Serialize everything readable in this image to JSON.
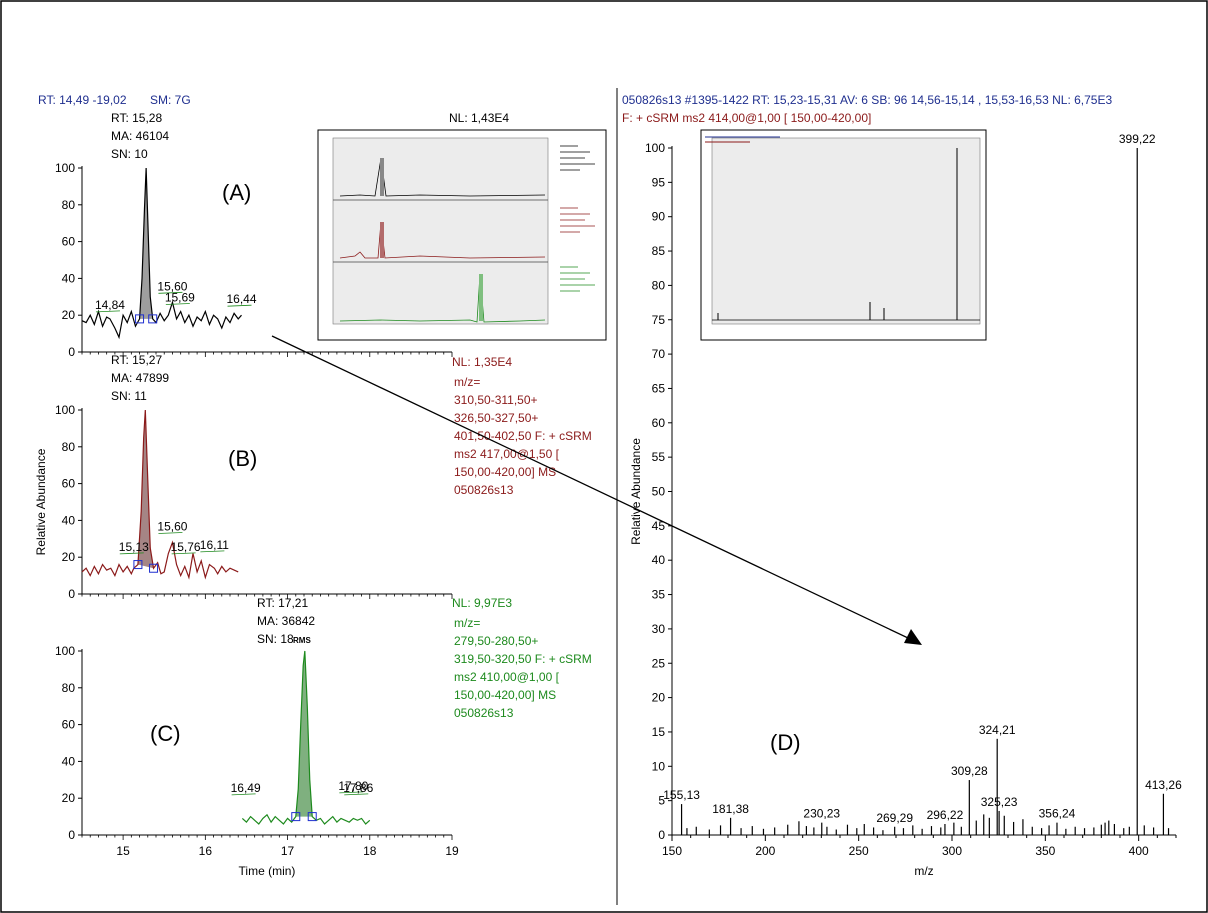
{
  "chrome": {
    "left_header": {
      "label1": "RT: 14,49 -19,02",
      "label2": "SM: 7G"
    },
    "right_header": {
      "line1": "050826s13 #1395-1422  RT: 15,23-15,31  AV: 6  SB: 96  14,56-15,14 , 15,53-16,53  NL: 6,75E3",
      "line2": "F: + cSRM ms2 414,00@1,00 [ 150,00-420,00]"
    },
    "panelA": {
      "info": [
        "RT: 15,28",
        "MA: 46104",
        "SN: 10"
      ],
      "nl": "NL: 1,43E4",
      "letter": "(A)"
    },
    "panelB": {
      "info": [
        "RT: 15,27",
        "MA: 47899",
        "SN: 11"
      ],
      "nl": "NL: 1,35E4",
      "filter": [
        "m/z=",
        "310,50-311,50+",
        "326,50-327,50+",
        "401,50-402,50 F: + cSRM",
        "ms2 417,00@1,50 [",
        "150,00-420,00]  MS",
        "050826s13"
      ],
      "letter": "(B)"
    },
    "panelC": {
      "info": [
        "RT: 17,21",
        "MA: 36842",
        "SN: 18"
      ],
      "rms": "RMS",
      "nl": "NL: 9,97E3",
      "filter": [
        "m/z=",
        "279,50-280,50+",
        "319,50-320,50 F: + cSRM",
        "ms2 410,00@1,00 [",
        "150,00-420,00]  MS",
        "050826s13"
      ],
      "letter": "(C)"
    },
    "panelD": {
      "letter": "(D)"
    }
  },
  "chart_data": [
    {
      "type": "line",
      "panel": "A",
      "color": "#000000",
      "xlim": [
        14.5,
        19
      ],
      "ylim": [
        0,
        100
      ],
      "yticks": [
        0,
        20,
        40,
        60,
        80,
        100
      ],
      "peak_labels": [
        {
          "x": 14.84,
          "label": "14,84"
        },
        {
          "x": 15.6,
          "label": "15,60"
        },
        {
          "x": 15.69,
          "label": "15,69"
        },
        {
          "x": 16.44,
          "label": "16,44"
        }
      ],
      "x": [
        14.5,
        14.55,
        14.6,
        14.65,
        14.7,
        14.75,
        14.8,
        14.84,
        14.9,
        14.95,
        15.0,
        15.05,
        15.1,
        15.15,
        15.2,
        15.23,
        15.26,
        15.28,
        15.3,
        15.33,
        15.36,
        15.4,
        15.45,
        15.5,
        15.55,
        15.6,
        15.65,
        15.7,
        15.75,
        15.8,
        15.85,
        15.9,
        15.95,
        16.0,
        16.05,
        16.1,
        16.15,
        16.2,
        16.25,
        16.3,
        16.35,
        16.4,
        16.44
      ],
      "y": [
        17,
        16,
        20,
        15,
        22,
        14,
        19,
        18,
        13,
        8,
        20,
        16,
        22,
        14,
        18,
        40,
        78,
        100,
        72,
        30,
        18,
        16,
        21,
        17,
        20,
        27,
        18,
        22,
        16,
        20,
        14,
        19,
        17,
        22,
        15,
        20,
        18,
        13,
        19,
        16,
        21,
        18,
        20
      ]
    },
    {
      "type": "line",
      "panel": "B",
      "color": "#8b1a1a",
      "xlim": [
        14.5,
        19
      ],
      "ylim": [
        0,
        100
      ],
      "yticks": [
        0,
        20,
        40,
        60,
        80,
        100
      ],
      "ylabel": "Relative Abundance",
      "peak_labels": [
        {
          "x": 15.13,
          "label": "15,13"
        },
        {
          "x": 15.6,
          "label": "15,60"
        },
        {
          "x": 15.76,
          "label": "15,76"
        },
        {
          "x": 16.11,
          "label": "16,11"
        }
      ],
      "x": [
        14.5,
        14.55,
        14.6,
        14.65,
        14.7,
        14.75,
        14.8,
        14.85,
        14.9,
        14.95,
        15.0,
        15.05,
        15.1,
        15.13,
        15.18,
        15.22,
        15.25,
        15.27,
        15.3,
        15.33,
        15.37,
        15.42,
        15.46,
        15.5,
        15.55,
        15.6,
        15.65,
        15.7,
        15.75,
        15.8,
        15.85,
        15.9,
        15.95,
        16.0,
        16.05,
        16.11,
        16.15,
        16.2,
        16.25,
        16.3,
        16.35,
        16.4
      ],
      "y": [
        12,
        14,
        10,
        15,
        11,
        16,
        13,
        14,
        10,
        16,
        12,
        15,
        11,
        14,
        16,
        45,
        85,
        100,
        62,
        25,
        14,
        17,
        11,
        12,
        22,
        28,
        16,
        10,
        15,
        9,
        22,
        12,
        18,
        9,
        16,
        14,
        11,
        15,
        12,
        14,
        13,
        12
      ]
    },
    {
      "type": "line",
      "panel": "C",
      "color": "#1d8a1d",
      "xlim": [
        14.5,
        19
      ],
      "ylim": [
        0,
        100
      ],
      "xticks": [
        15,
        16,
        17,
        18,
        19
      ],
      "yticks": [
        0,
        20,
        40,
        60,
        80,
        100
      ],
      "xlabel": "Time (min)",
      "peak_labels": [
        {
          "x": 16.49,
          "label": "16,49"
        },
        {
          "x": 17.8,
          "label": "17,80"
        },
        {
          "x": 17.86,
          "label": "17,86"
        }
      ],
      "x": [
        16.45,
        16.5,
        16.55,
        16.6,
        16.65,
        16.7,
        16.75,
        16.8,
        16.85,
        16.9,
        16.95,
        17.0,
        17.05,
        17.1,
        17.13,
        17.16,
        17.19,
        17.21,
        17.24,
        17.27,
        17.3,
        17.35,
        17.4,
        17.45,
        17.5,
        17.55,
        17.6,
        17.65,
        17.7,
        17.75,
        17.8,
        17.85,
        17.9,
        17.95,
        18.0
      ],
      "y": [
        9,
        7,
        10,
        8,
        6,
        9,
        11,
        7,
        10,
        8,
        6,
        9,
        7,
        10,
        25,
        60,
        92,
        100,
        70,
        30,
        10,
        8,
        9,
        6,
        8,
        10,
        7,
        9,
        8,
        7,
        9,
        8,
        9,
        6,
        8
      ]
    },
    {
      "type": "bar",
      "panel": "D",
      "xlim": [
        150,
        420
      ],
      "ylim": [
        0,
        100
      ],
      "xticks": [
        150,
        200,
        250,
        300,
        350,
        400
      ],
      "yticks": [
        0,
        5,
        10,
        15,
        20,
        25,
        30,
        35,
        40,
        45,
        50,
        55,
        60,
        65,
        70,
        75,
        80,
        85,
        90,
        95,
        100
      ],
      "xlabel": "m/z",
      "ylabel": "Relative Abundance",
      "x": [
        155.13,
        158,
        163,
        170,
        176,
        181.38,
        187,
        193,
        199,
        205,
        212,
        218,
        222,
        226,
        230.23,
        233,
        238,
        244,
        249,
        253,
        258,
        263,
        269.29,
        274,
        279,
        284,
        289,
        294,
        296.22,
        301,
        305,
        309.28,
        313,
        317,
        320,
        324.21,
        325.23,
        328,
        333,
        338,
        343,
        348,
        352,
        356.24,
        361,
        366,
        371,
        376,
        380,
        382,
        384,
        387,
        392,
        395,
        399.22,
        403,
        408,
        413.26,
        416
      ],
      "values": [
        4.5,
        1,
        1.2,
        0.8,
        1.4,
        2.5,
        1,
        1.3,
        0.9,
        1.1,
        1.5,
        2,
        1.3,
        1.1,
        1.8,
        1.2,
        0.8,
        1.5,
        1,
        1.6,
        1.1,
        0.7,
        1.2,
        1,
        1.4,
        0.9,
        1.3,
        1.1,
        1.6,
        1.8,
        1.2,
        8,
        2.1,
        3,
        2.5,
        14,
        3.5,
        2.8,
        1.9,
        2.3,
        1.2,
        1,
        1.4,
        1.8,
        0.9,
        1.2,
        1,
        1.1,
        1.5,
        1.8,
        2.1,
        1.6,
        1,
        1.2,
        100,
        1.4,
        1.1,
        6,
        1
      ],
      "labels": [
        {
          "x": 155.13,
          "label": "155,13"
        },
        {
          "x": 181.38,
          "label": "181,38"
        },
        {
          "x": 230.23,
          "label": "230,23"
        },
        {
          "x": 269.29,
          "label": "269,29"
        },
        {
          "x": 296.22,
          "label": "296,22"
        },
        {
          "x": 309.28,
          "label": "309,28"
        },
        {
          "x": 324.21,
          "label": "324,21"
        },
        {
          "x": 325.23,
          "label": "325,23"
        },
        {
          "x": 356.24,
          "label": "356,24"
        },
        {
          "x": 399.22,
          "label": "399,22"
        },
        {
          "x": 413.26,
          "label": "413,26"
        }
      ]
    }
  ]
}
